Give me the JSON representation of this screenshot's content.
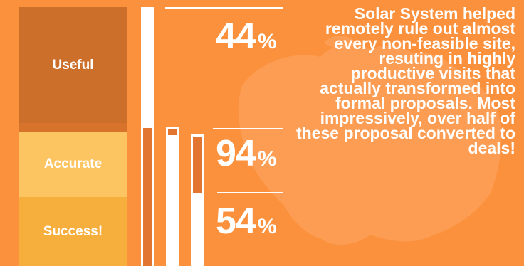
{
  "chart_data": {
    "type": "bar",
    "categories": [
      "Useful",
      "Accurate",
      "Success!"
    ],
    "values": [
      44,
      94,
      54
    ],
    "unit": "%"
  },
  "labels": {
    "useful": "Useful",
    "accurate": "Accurate",
    "success": "Success!"
  },
  "percentages": {
    "useful": "44",
    "accurate": "94",
    "success": "54",
    "sign": "%"
  },
  "caption": "Solar System helped remotely rule out almost every non-feasible site, resuting in highly productive visits that actually transformed into formal proposals. Most impressively, over half of these proposal converted to deals!",
  "colors": {
    "background": "#fb913d",
    "useful": "#cc6f2b",
    "accurate": "#fdc462",
    "success": "#f6ae3c"
  }
}
